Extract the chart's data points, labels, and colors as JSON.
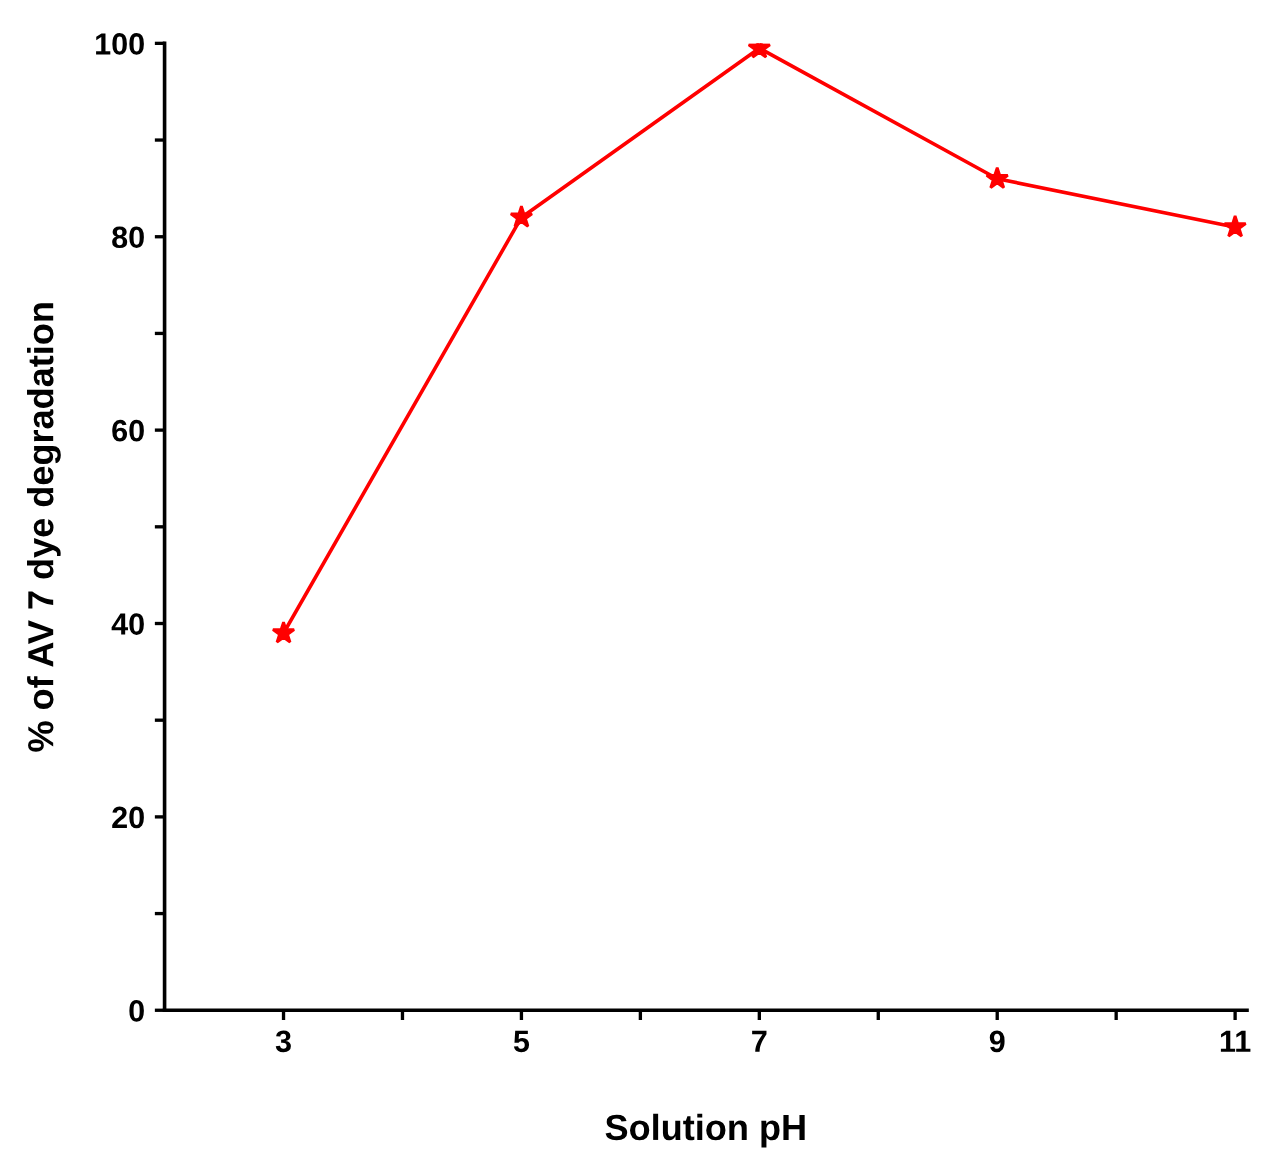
{
  "chart_data": {
    "type": "line",
    "xlabel": "Solution pH",
    "ylabel": "% of AV 7 dye degradation",
    "x": [
      3,
      5,
      7,
      9,
      11
    ],
    "series": [
      {
        "color": "#ff0000",
        "values": [
          39,
          82,
          99.5,
          86,
          81
        ]
      }
    ],
    "xlim": [
      2,
      11.1
    ],
    "ylim": [
      0,
      100
    ],
    "xticks": [
      3,
      {
        "value": 4,
        "label": null
      },
      5,
      {
        "value": 6,
        "label": null
      },
      7,
      {
        "value": 8,
        "label": null
      },
      9,
      {
        "value": 10,
        "label": null
      },
      11
    ],
    "yticks": [
      0,
      {
        "value": 10,
        "label": null
      },
      20,
      {
        "value": 30,
        "label": null
      },
      40,
      {
        "value": 50,
        "label": null
      },
      60,
      {
        "value": 70,
        "label": null
      },
      80,
      {
        "value": 90,
        "label": null
      },
      100
    ],
    "marker": "star",
    "line_style": "solid",
    "grid": false,
    "legend": false
  }
}
